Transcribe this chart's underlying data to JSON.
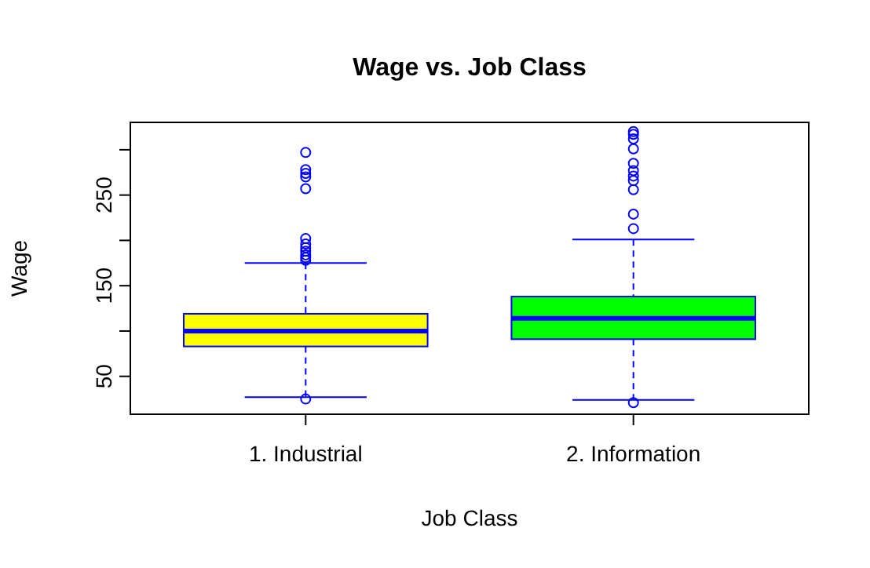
{
  "chart_data": {
    "type": "box",
    "title": "Wage vs. Job Class",
    "xlabel": "Job Class",
    "ylabel": "Wage",
    "categories": [
      "1. Industrial",
      "2. Information"
    ],
    "colors": [
      "#ffff00",
      "#00ff00"
    ],
    "marker": "circle",
    "boxes": [
      {
        "low": 27,
        "q1": 83,
        "median": 100,
        "q3": 119,
        "high": 175,
        "outliers": [
          25,
          178,
          181,
          184,
          188,
          192,
          196,
          202,
          257,
          270,
          274,
          278,
          297
        ]
      },
      {
        "low": 24,
        "q1": 91,
        "median": 114,
        "q3": 138,
        "high": 201,
        "outliers": [
          21,
          213,
          229,
          256,
          266,
          271,
          277,
          285,
          301,
          312,
          317,
          320
        ]
      }
    ],
    "ylim": [
      8.2,
      330.2
    ],
    "yticks": [
      50,
      {
        "value": 100,
        "label": null
      },
      150,
      {
        "value": 200,
        "label": null
      },
      250,
      {
        "value": 300,
        "label": null
      }
    ],
    "grid": false
  }
}
